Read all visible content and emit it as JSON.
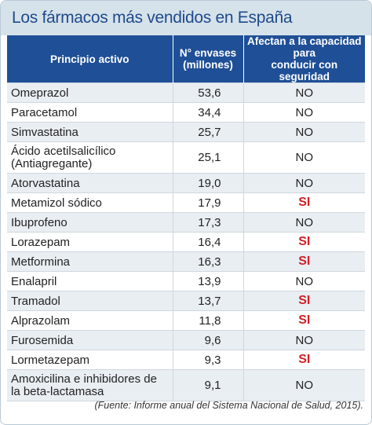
{
  "title": "Los fármacos más vendidos en España",
  "table": {
    "headers": {
      "drug": "Principio activo",
      "units_line1": "N° envases",
      "units_line2": "(millones)",
      "driving_line1": "Afectan a la capacidad para",
      "driving_line2": "conducir con seguridad"
    },
    "rows": [
      {
        "drug": "Omeprazol",
        "units": "53,6",
        "driving": "NO"
      },
      {
        "drug": "Paracetamol",
        "units": "34,4",
        "driving": "NO"
      },
      {
        "drug": "Simvastatina",
        "units": "25,7",
        "driving": "NO"
      },
      {
        "drug": "Ácido acetilsalicílico (Antiagregante)",
        "units": "25,1",
        "driving": "NO"
      },
      {
        "drug": "Atorvastatina",
        "units": "19,0",
        "driving": "NO"
      },
      {
        "drug": "Metamizol sódico",
        "units": "17,9",
        "driving": "SI"
      },
      {
        "drug": "Ibuprofeno",
        "units": "17,3",
        "driving": "NO"
      },
      {
        "drug": "Lorazepam",
        "units": "16,4",
        "driving": "SI"
      },
      {
        "drug": "Metformina",
        "units": "16,3",
        "driving": "SI"
      },
      {
        "drug": "Enalapril",
        "units": "13,9",
        "driving": "NO"
      },
      {
        "drug": "Tramadol",
        "units": "13,7",
        "driving": "SI"
      },
      {
        "drug": "Alprazolam",
        "units": "11,8",
        "driving": "SI"
      },
      {
        "drug": "Furosemida",
        "units": "9,6",
        "driving": "NO"
      },
      {
        "drug": "Lormetazepam",
        "units": "9,3",
        "driving": "SI"
      },
      {
        "drug": "Amoxicilina e inhibidores de la beta-lactamasa",
        "units": "9,1",
        "driving": "NO"
      }
    ]
  },
  "source": "(Fuente: Informe anual del Sistema Nacional de Salud, 2015)."
}
